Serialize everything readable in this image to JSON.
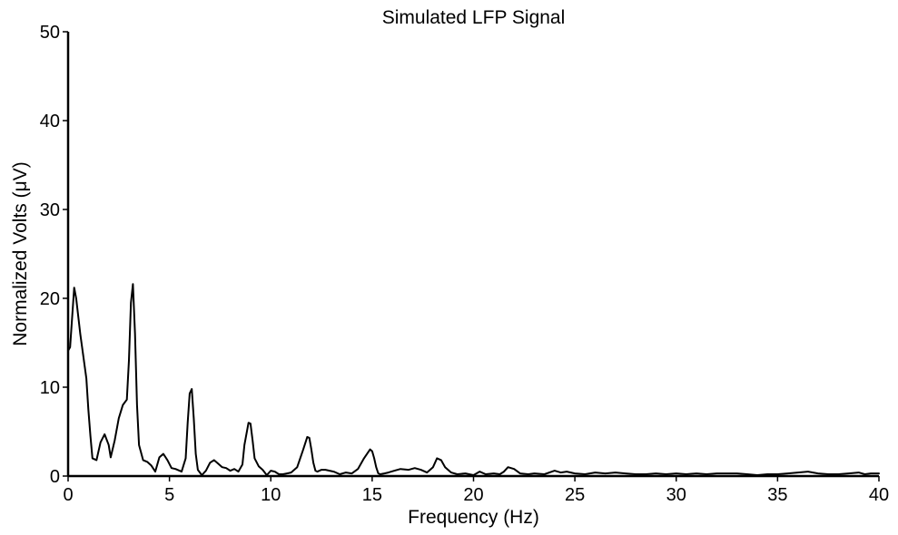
{
  "chart_data": {
    "type": "line",
    "title": "Simulated LFP Signal",
    "xlabel": "Frequency (Hz)",
    "ylabel": "Normalized Volts (μV)",
    "xlim": [
      0,
      40
    ],
    "ylim": [
      0,
      50
    ],
    "xticks": [
      "0",
      "5",
      "10",
      "15",
      "20",
      "25",
      "30",
      "35",
      "40"
    ],
    "yticks": [
      "0",
      "10",
      "20",
      "30",
      "40",
      "50"
    ],
    "grid": false,
    "colors": {
      "line": "#000000",
      "axis": "#000000"
    },
    "series": [
      {
        "x": [
          0.0,
          0.1,
          0.3,
          0.4,
          0.6,
          0.9,
          1.0,
          1.1,
          1.2,
          1.4,
          1.6,
          1.8,
          2.0,
          2.1,
          2.3,
          2.5,
          2.7,
          2.9,
          3.0,
          3.1,
          3.2,
          3.3,
          3.4,
          3.5,
          3.7,
          3.9,
          4.1,
          4.3,
          4.5,
          4.7,
          4.9,
          5.1,
          5.3,
          5.6,
          5.8,
          5.9,
          6.0,
          6.1,
          6.2,
          6.3,
          6.4,
          6.6,
          6.8,
          7.0,
          7.2,
          7.4,
          7.6,
          7.8,
          8.0,
          8.2,
          8.4,
          8.6,
          8.7,
          8.9,
          9.0,
          9.1,
          9.2,
          9.4,
          9.6,
          9.8,
          10.0,
          10.2,
          10.4,
          10.6,
          10.8,
          11.0,
          11.3,
          11.6,
          11.8,
          11.9,
          12.0,
          12.1,
          12.2,
          12.3,
          12.5,
          12.7,
          12.9,
          13.1,
          13.4,
          13.7,
          14.0,
          14.3,
          14.6,
          14.9,
          15.0,
          15.1,
          15.2,
          15.3,
          15.4,
          15.6,
          15.8,
          16.1,
          16.4,
          16.8,
          17.1,
          17.4,
          17.7,
          18.0,
          18.2,
          18.4,
          18.6,
          18.9,
          19.2,
          19.6,
          20.0,
          20.3,
          20.6,
          21.0,
          21.3,
          21.5,
          21.7,
          22.0,
          22.3,
          22.7,
          23.0,
          23.5,
          24.0,
          24.3,
          24.6,
          25.0,
          25.5,
          26.0,
          26.5,
          27.0,
          27.5,
          28.0,
          28.5,
          29.0,
          29.5,
          30.0,
          30.5,
          31.0,
          31.5,
          32.0,
          32.5,
          33.0,
          33.5,
          34.0,
          34.5,
          35.0,
          35.5,
          36.0,
          36.5,
          37.0,
          37.5,
          38.0,
          38.5,
          39.0,
          39.3,
          39.6,
          40.0
        ],
        "values": [
          14.1,
          14.5,
          21.2,
          20.0,
          16.0,
          11.0,
          7.5,
          4.5,
          2.0,
          1.8,
          3.8,
          4.7,
          3.5,
          2.1,
          4.0,
          6.5,
          8.0,
          8.6,
          13.0,
          19.5,
          21.6,
          16.0,
          8.0,
          3.5,
          1.8,
          1.6,
          1.2,
          0.5,
          2.1,
          2.5,
          1.8,
          0.9,
          0.8,
          0.5,
          2.0,
          6.0,
          9.3,
          9.8,
          6.5,
          2.5,
          0.7,
          0.1,
          0.6,
          1.5,
          1.8,
          1.4,
          1.0,
          0.9,
          0.6,
          0.8,
          0.5,
          1.3,
          3.5,
          6.0,
          5.9,
          4.0,
          2.0,
          1.1,
          0.7,
          0.1,
          0.6,
          0.5,
          0.2,
          0.2,
          0.3,
          0.4,
          1.0,
          3.0,
          4.4,
          4.3,
          3.0,
          1.5,
          0.6,
          0.5,
          0.7,
          0.7,
          0.6,
          0.5,
          0.2,
          0.4,
          0.3,
          0.8,
          2.0,
          3.0,
          2.8,
          2.0,
          1.0,
          0.3,
          0.2,
          0.3,
          0.4,
          0.6,
          0.8,
          0.7,
          0.9,
          0.7,
          0.4,
          1.0,
          2.0,
          1.8,
          1.0,
          0.4,
          0.2,
          0.3,
          0.1,
          0.5,
          0.2,
          0.3,
          0.2,
          0.5,
          1.0,
          0.8,
          0.3,
          0.2,
          0.3,
          0.2,
          0.6,
          0.4,
          0.5,
          0.3,
          0.2,
          0.4,
          0.3,
          0.4,
          0.3,
          0.2,
          0.2,
          0.3,
          0.2,
          0.3,
          0.2,
          0.3,
          0.2,
          0.3,
          0.3,
          0.3,
          0.2,
          0.1,
          0.2,
          0.2,
          0.3,
          0.4,
          0.5,
          0.3,
          0.2,
          0.2,
          0.3,
          0.4,
          0.2,
          0.3,
          0.3
        ]
      }
    ]
  }
}
